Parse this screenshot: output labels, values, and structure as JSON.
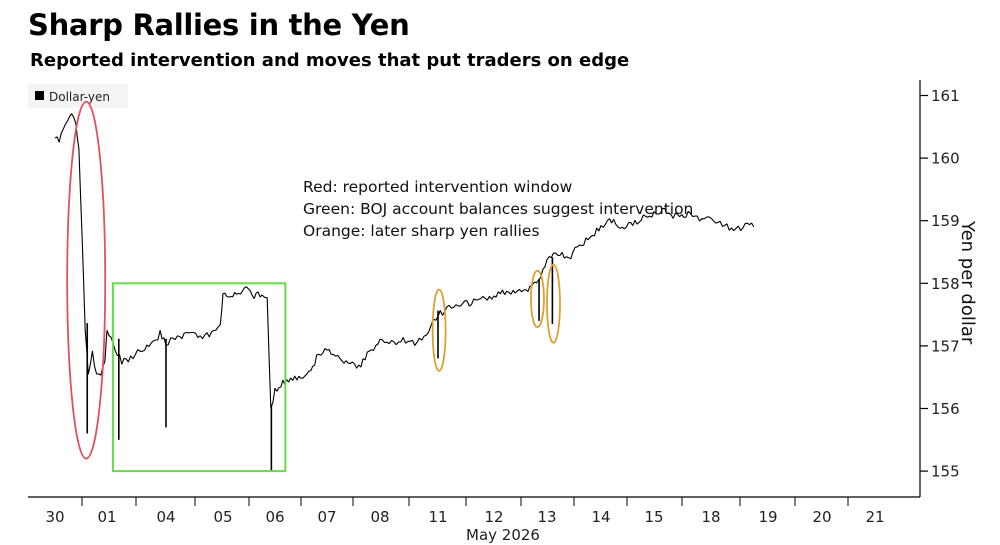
{
  "title": "Sharp Rallies in the Yen",
  "subtitle": "Reported intervention and moves that put traders on edge",
  "chart_data": {
    "type": "line",
    "legend": {
      "label": "Dollar-yen",
      "placement": "top-left"
    },
    "notes": [
      "Red: reported intervention window",
      "Green: BOJ account balances suggest intervention",
      "Orange: later sharp yen rallies"
    ],
    "xlabel": "May 2026",
    "ylabel": "Yen per dollar",
    "x_ticks": [
      "30",
      "01",
      "04",
      "05",
      "06",
      "07",
      "08",
      "11",
      "12",
      "13",
      "14",
      "15",
      "18",
      "19",
      "20",
      "21"
    ],
    "ylim": [
      154.8,
      161.3
    ],
    "y_ticks": [
      155,
      156,
      157,
      158,
      159,
      160,
      161
    ],
    "grid": false,
    "colors": {
      "line": "#000000",
      "red": "#e05060",
      "green": "#66dd44",
      "orange": "#e0a030"
    },
    "series": [
      {
        "name": "Dollar-yen",
        "points": [
          [
            0.0,
            160.35
          ],
          [
            0.08,
            160.3
          ],
          [
            0.16,
            160.5
          ],
          [
            0.24,
            160.55
          ],
          [
            0.32,
            160.7
          ],
          [
            0.4,
            160.6
          ],
          [
            0.46,
            160.15
          ],
          [
            0.52,
            158.8
          ],
          [
            0.58,
            157.3
          ],
          [
            0.64,
            156.5
          ],
          [
            0.72,
            156.9
          ],
          [
            0.8,
            156.5
          ],
          [
            0.88,
            156.55
          ],
          [
            0.96,
            156.75
          ],
          [
            1.0,
            157.2
          ],
          [
            1.1,
            157.05
          ],
          [
            1.25,
            156.75
          ],
          [
            1.4,
            156.8
          ],
          [
            1.6,
            156.95
          ],
          [
            1.75,
            157.0
          ],
          [
            1.9,
            157.2
          ],
          [
            2.0,
            157.05
          ],
          [
            2.2,
            157.15
          ],
          [
            2.4,
            157.2
          ],
          [
            2.6,
            157.15
          ],
          [
            2.8,
            157.2
          ],
          [
            2.95,
            157.35
          ],
          [
            3.0,
            157.8
          ],
          [
            3.15,
            157.8
          ],
          [
            3.3,
            157.85
          ],
          [
            3.45,
            157.9
          ],
          [
            3.6,
            157.8
          ],
          [
            3.75,
            157.85
          ],
          [
            3.85,
            157.8
          ],
          [
            3.92,
            156.0
          ],
          [
            4.0,
            156.3
          ],
          [
            4.15,
            156.4
          ],
          [
            4.3,
            156.45
          ],
          [
            4.5,
            156.5
          ],
          [
            4.65,
            156.55
          ],
          [
            4.8,
            156.8
          ],
          [
            5.0,
            156.95
          ],
          [
            5.2,
            156.8
          ],
          [
            5.4,
            156.75
          ],
          [
            5.6,
            156.65
          ],
          [
            5.8,
            156.9
          ],
          [
            6.0,
            157.1
          ],
          [
            6.2,
            157.05
          ],
          [
            6.4,
            157.1
          ],
          [
            6.6,
            157.05
          ],
          [
            6.8,
            157.2
          ],
          [
            7.0,
            157.5
          ],
          [
            7.2,
            157.6
          ],
          [
            7.4,
            157.65
          ],
          [
            7.6,
            157.7
          ],
          [
            7.8,
            157.75
          ],
          [
            8.0,
            157.8
          ],
          [
            8.2,
            157.85
          ],
          [
            8.4,
            157.85
          ],
          [
            8.6,
            157.9
          ],
          [
            8.8,
            158.0
          ],
          [
            9.0,
            158.35
          ],
          [
            9.2,
            158.5
          ],
          [
            9.4,
            158.4
          ],
          [
            9.6,
            158.6
          ],
          [
            9.8,
            158.75
          ],
          [
            10.0,
            158.9
          ],
          [
            10.2,
            159.0
          ],
          [
            10.4,
            158.9
          ],
          [
            10.6,
            158.95
          ],
          [
            10.8,
            159.05
          ],
          [
            11.0,
            159.1
          ],
          [
            11.15,
            159.2
          ],
          [
            11.3,
            159.1
          ],
          [
            11.45,
            159.05
          ],
          [
            11.6,
            159.1
          ],
          [
            11.8,
            159.0
          ],
          [
            12.0,
            159.05
          ],
          [
            12.2,
            158.95
          ],
          [
            12.4,
            158.85
          ],
          [
            12.6,
            158.9
          ],
          [
            12.75,
            158.95
          ]
        ]
      }
    ],
    "spikes": [
      {
        "x": 0.62,
        "low": 155.6
      },
      {
        "x": 1.2,
        "low": 155.5
      },
      {
        "x": 2.0,
        "low": 155.7
      },
      {
        "x": 3.93,
        "low": 155.0
      },
      {
        "x": 7.0,
        "low": 156.8
      },
      {
        "x": 8.85,
        "low": 157.4
      },
      {
        "x": 9.1,
        "low": 157.35
      }
    ],
    "annotations": [
      {
        "shape": "ellipse",
        "color": "red",
        "x": 0.6,
        "y_from": 155.2,
        "y_to": 160.9
      },
      {
        "shape": "rect",
        "color": "green",
        "x_from": 1.1,
        "x_to": 4.2,
        "y_from": 155.0,
        "y_to": 158.0
      },
      {
        "shape": "ellipse",
        "color": "orange",
        "x": 7.02,
        "y_from": 156.6,
        "y_to": 157.9
      },
      {
        "shape": "ellipse",
        "color": "orange",
        "x": 8.82,
        "y_from": 157.3,
        "y_to": 158.2
      },
      {
        "shape": "ellipse",
        "color": "orange",
        "x": 9.12,
        "y_from": 157.05,
        "y_to": 158.3
      }
    ]
  }
}
